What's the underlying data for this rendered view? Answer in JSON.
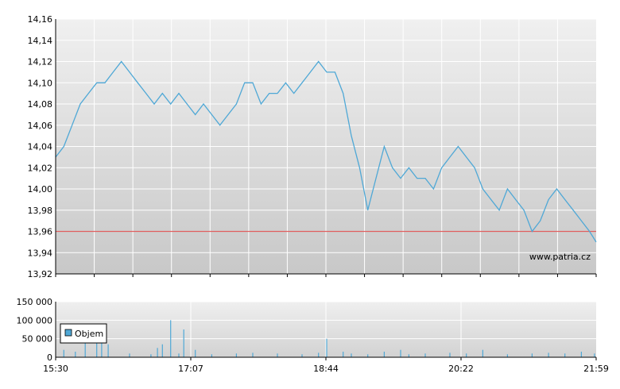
{
  "chart_data": [
    {
      "type": "line",
      "name_hidden": "",
      "y_ticks": [
        "14,16",
        "14,14",
        "14,12",
        "14,10",
        "14,08",
        "14,06",
        "14,04",
        "14,02",
        "14,00",
        "13,98",
        "13,96",
        "13,94",
        "13,92"
      ],
      "ylim": [
        13.92,
        14.16
      ],
      "reference_line": 13.96,
      "watermark": "www.patria.cz",
      "colors": {
        "line": "#4fa8d6",
        "reference": "#e06060",
        "grid": "#ffffff"
      },
      "x_time_minutes": [
        0,
        5,
        10,
        15,
        20,
        25,
        30,
        35,
        40,
        45,
        50,
        55,
        60,
        65,
        70,
        75,
        80,
        85,
        90,
        95,
        100,
        105,
        110,
        115,
        120,
        125,
        130,
        135,
        140,
        145,
        150,
        155,
        160,
        165,
        170,
        175,
        180,
        185,
        190,
        195,
        200,
        205,
        210,
        215,
        220,
        225,
        230,
        235,
        240,
        245,
        250,
        255,
        260,
        265,
        270,
        275,
        280,
        285,
        290,
        295,
        300,
        305,
        310,
        315,
        320,
        325,
        329
      ],
      "values": [
        14.03,
        14.04,
        14.06,
        14.08,
        14.09,
        14.1,
        14.1,
        14.11,
        14.12,
        14.11,
        14.1,
        14.09,
        14.08,
        14.09,
        14.08,
        14.09,
        14.08,
        14.07,
        14.08,
        14.07,
        14.06,
        14.07,
        14.08,
        14.1,
        14.1,
        14.08,
        14.09,
        14.09,
        14.1,
        14.09,
        14.1,
        14.11,
        14.12,
        14.11,
        14.11,
        14.09,
        14.05,
        14.02,
        13.98,
        14.01,
        14.04,
        14.02,
        14.01,
        14.02,
        14.01,
        14.01,
        14.0,
        14.02,
        14.03,
        14.04,
        14.03,
        14.02,
        14.0,
        13.99,
        13.98,
        14.0,
        13.99,
        13.98,
        13.96,
        13.97,
        13.99,
        14.0,
        13.99,
        13.98,
        13.97,
        13.96,
        13.95
      ]
    },
    {
      "type": "bar",
      "y_ticks": [
        "150 000",
        "100 000",
        "50 000",
        "0"
      ],
      "ylim": [
        0,
        150000
      ],
      "legend": {
        "label": "Objem",
        "placement": "top-left"
      },
      "x_ticks": [
        "15:30",
        "17:07",
        "18:44",
        "20:22",
        "21:59"
      ],
      "colors": {
        "bar": "#4fa8d6"
      },
      "x_time_minutes": [
        5,
        12,
        18,
        25,
        28,
        32,
        45,
        58,
        62,
        65,
        70,
        75,
        78,
        85,
        95,
        110,
        120,
        135,
        150,
        160,
        165,
        175,
        180,
        190,
        200,
        210,
        215,
        225,
        240,
        250,
        260,
        275,
        290,
        300,
        310,
        320,
        328
      ],
      "values": [
        20000,
        15000,
        60000,
        55000,
        40000,
        35000,
        10000,
        8000,
        25000,
        35000,
        100000,
        10000,
        75000,
        20000,
        8000,
        10000,
        12000,
        10000,
        8000,
        12000,
        50000,
        15000,
        10000,
        8000,
        15000,
        20000,
        8000,
        10000,
        12000,
        10000,
        20000,
        8000,
        10000,
        12000,
        10000,
        15000,
        10000
      ]
    }
  ]
}
